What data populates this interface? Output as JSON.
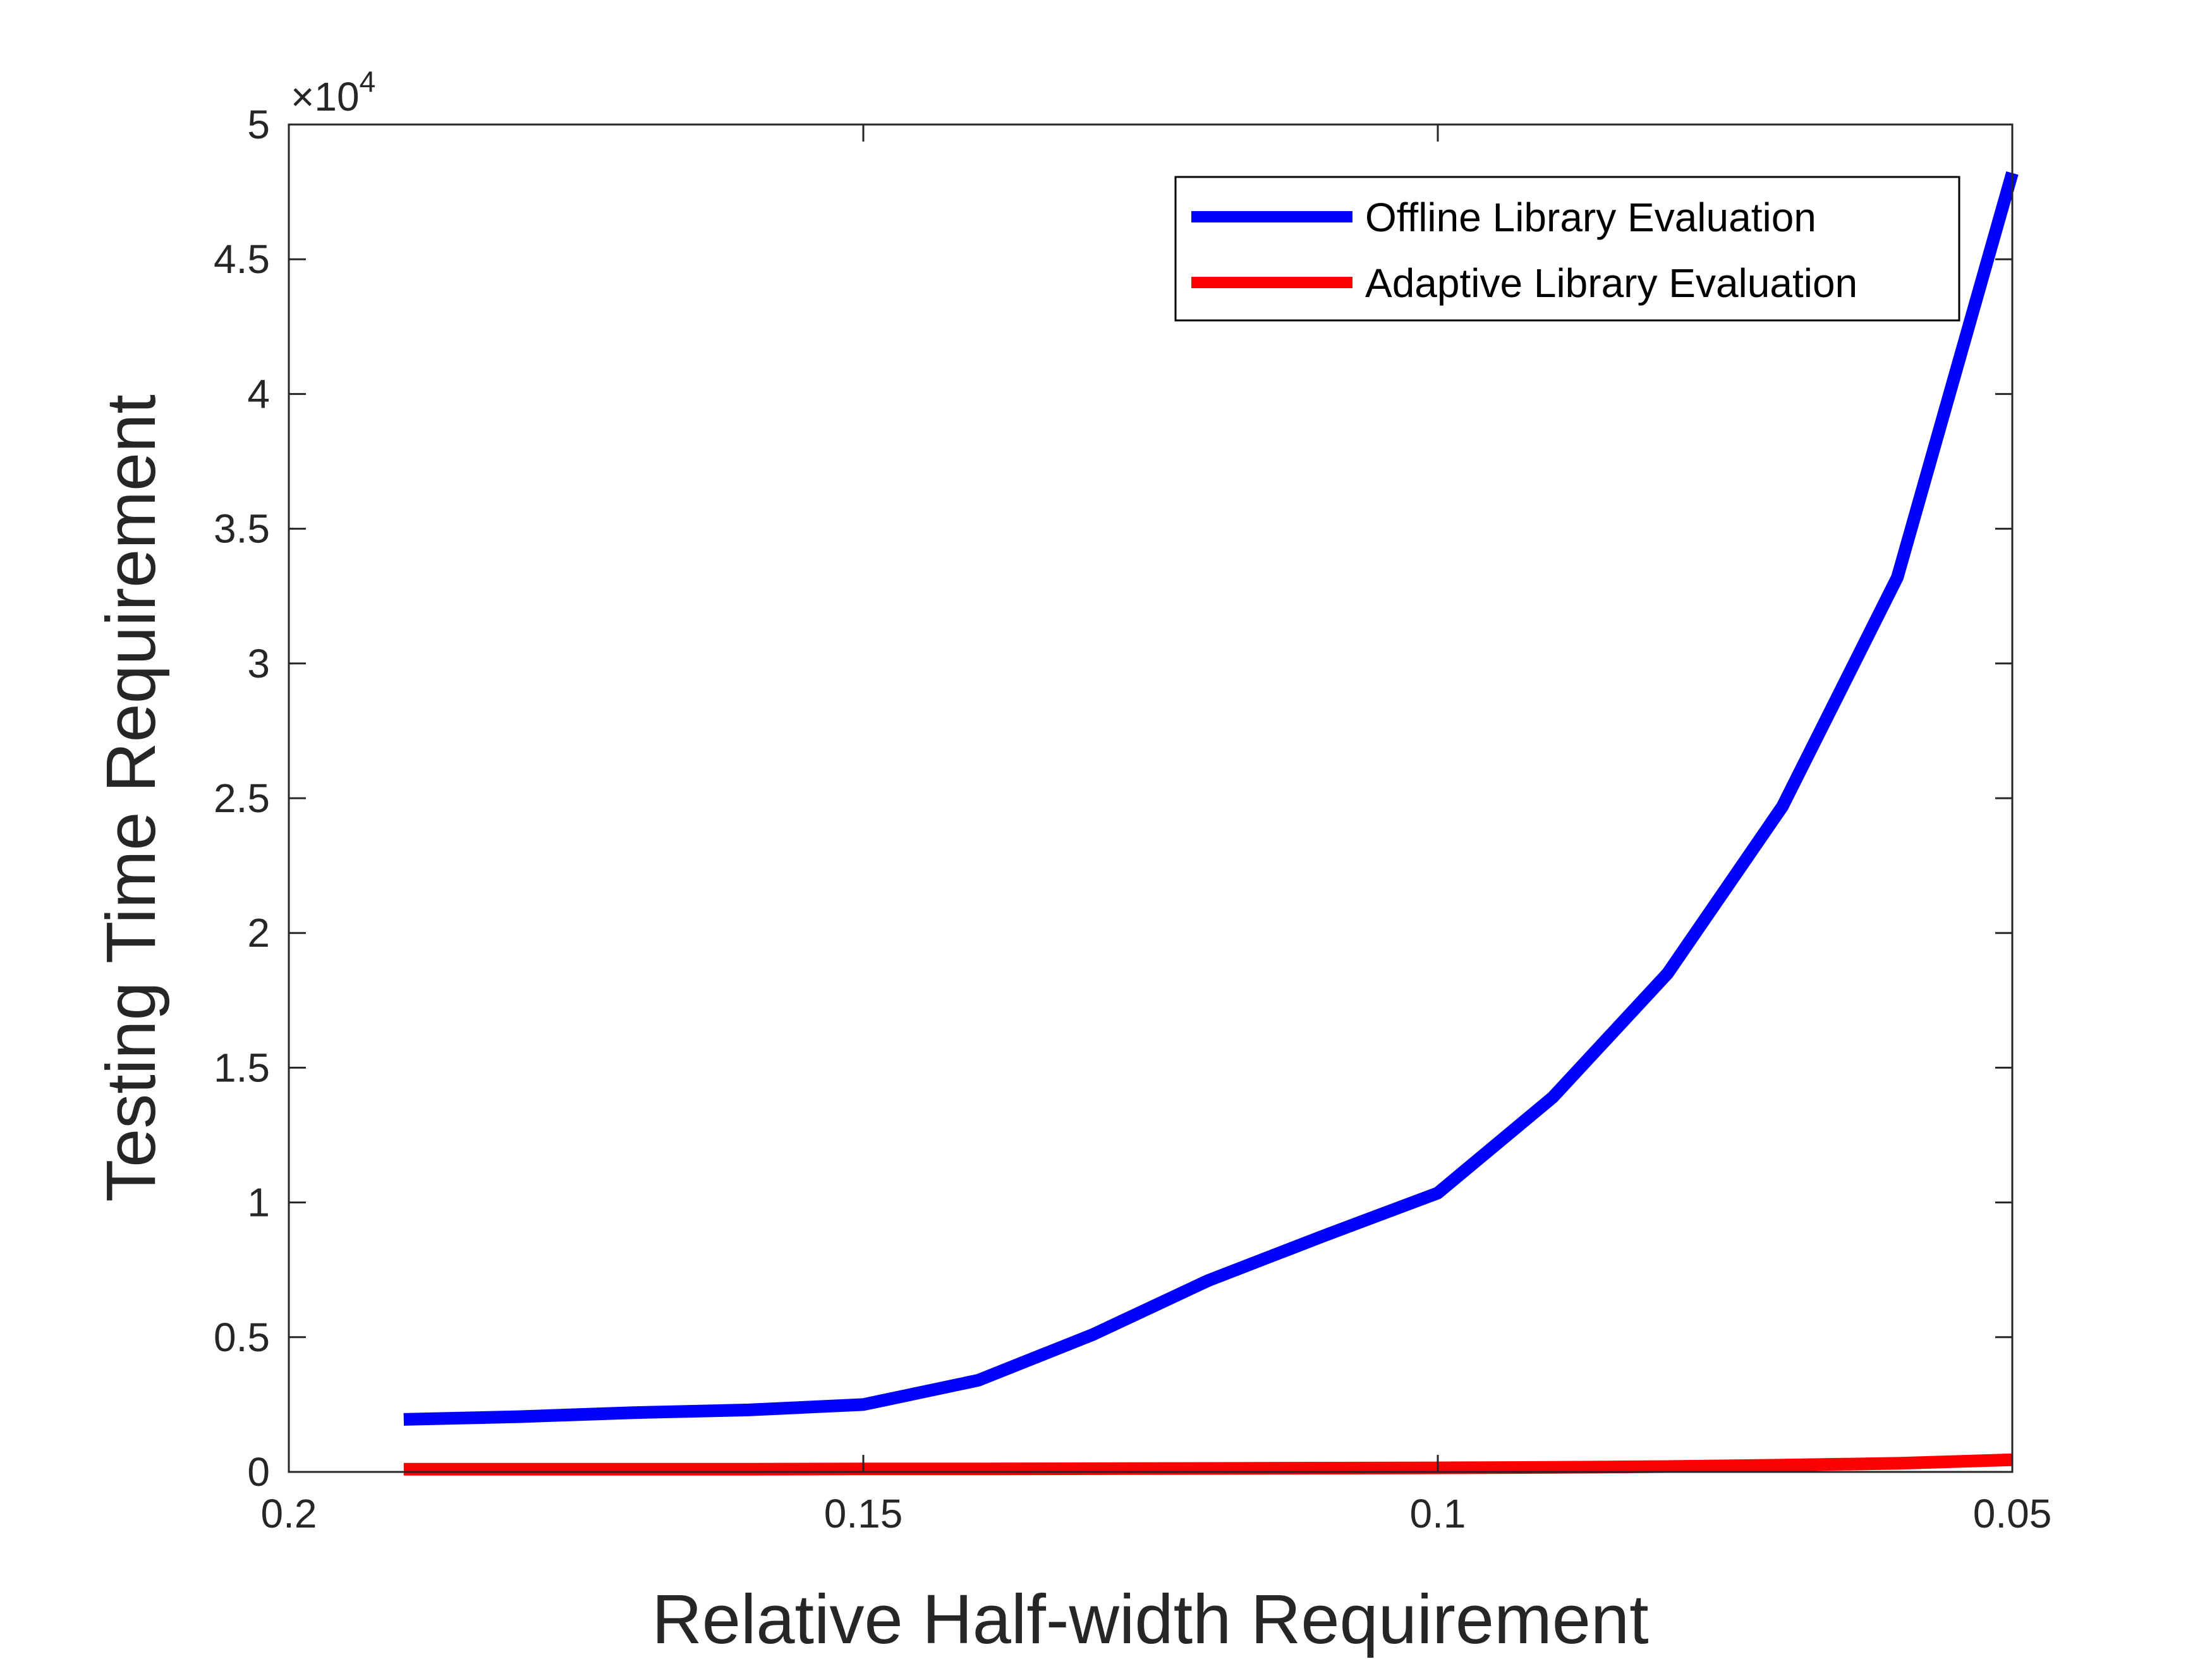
{
  "chart_data": {
    "type": "line",
    "xlabel": "Relative Half-width Requirement",
    "ylabel": "Testing Time Requirement",
    "x_reversed": true,
    "xlim": [
      0.05,
      0.2
    ],
    "ylim": [
      0,
      50000
    ],
    "xticks": [
      0.2,
      0.15,
      0.1,
      0.05
    ],
    "xtick_labels": [
      "0.2",
      "0.15",
      "0.1",
      "0.05"
    ],
    "yticks": [
      0,
      5000,
      10000,
      15000,
      20000,
      25000,
      30000,
      35000,
      40000,
      45000,
      50000
    ],
    "ytick_labels": [
      "0",
      "0.5",
      "1",
      "1.5",
      "2",
      "2.5",
      "3",
      "3.5",
      "4",
      "4.5",
      "5"
    ],
    "y_multiplier": {
      "times": "×10",
      "power": "4"
    },
    "grid": false,
    "legend_position": "top-right",
    "x": [
      0.19,
      0.18,
      0.17,
      0.16,
      0.15,
      0.14,
      0.13,
      0.12,
      0.11,
      0.1,
      0.09,
      0.08,
      0.07,
      0.06,
      0.05
    ],
    "series": [
      {
        "name": "Offline Library Evaluation",
        "color": "#0000ff",
        "values": [
          1950,
          2050,
          2200,
          2300,
          2500,
          3400,
          5100,
          7100,
          8750,
          10350,
          13900,
          18500,
          24700,
          33200,
          48200
        ]
      },
      {
        "name": "Adaptive Library Evaluation",
        "color": "#ff0000",
        "values": [
          100,
          100,
          100,
          100,
          110,
          110,
          120,
          130,
          140,
          150,
          170,
          200,
          250,
          320,
          450
        ]
      }
    ]
  }
}
